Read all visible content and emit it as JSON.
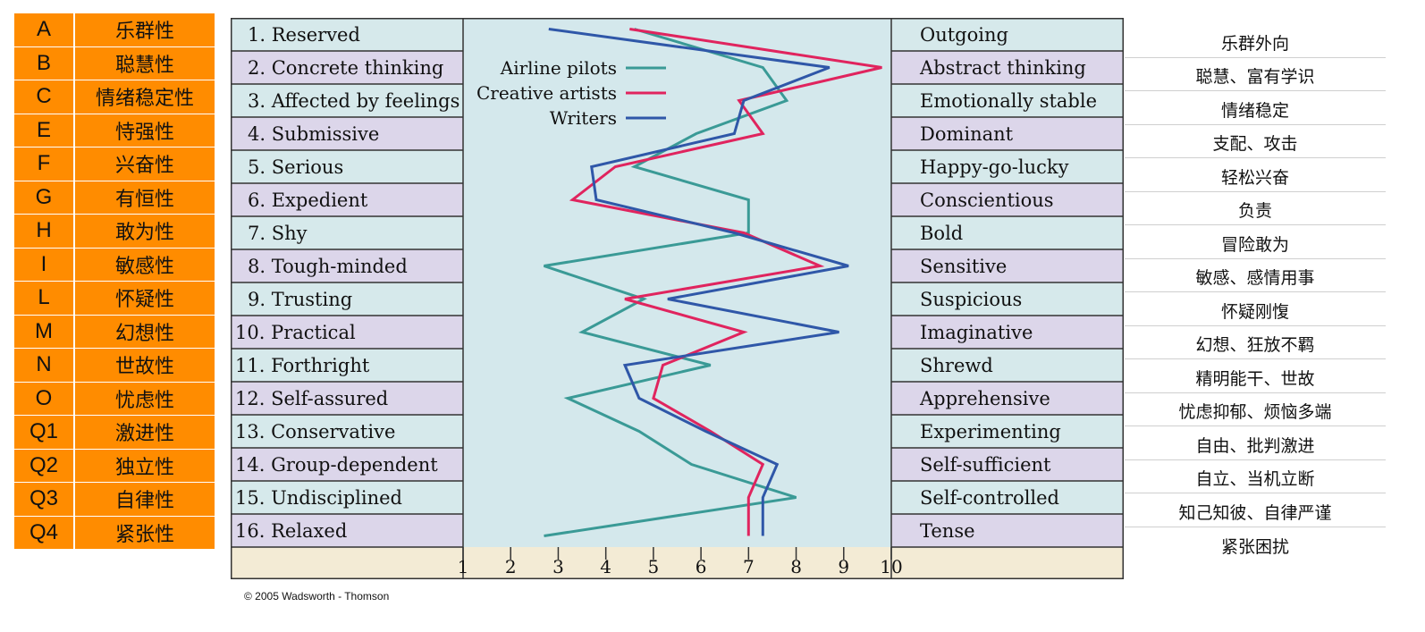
{
  "factor_table": [
    {
      "code": "A",
      "name": "乐群性"
    },
    {
      "code": "B",
      "name": "聪慧性"
    },
    {
      "code": "C",
      "name": "情绪稳定性"
    },
    {
      "code": "E",
      "name": "恃强性"
    },
    {
      "code": "F",
      "name": "兴奋性"
    },
    {
      "code": "G",
      "name": "有恒性"
    },
    {
      "code": "H",
      "name": "敢为性"
    },
    {
      "code": "I",
      "name": "敏感性"
    },
    {
      "code": "L",
      "name": "怀疑性"
    },
    {
      "code": "M",
      "name": "幻想性"
    },
    {
      "code": "N",
      "name": "世故性"
    },
    {
      "code": "O",
      "name": "忧虑性"
    },
    {
      "code": "Q1",
      "name": "激进性"
    },
    {
      "code": "Q2",
      "name": "独立性"
    },
    {
      "code": "Q3",
      "name": "自律性"
    },
    {
      "code": "Q4",
      "name": "紧张性"
    }
  ],
  "chinese_descriptions": [
    "乐群外向",
    "聪慧、富有学识",
    "情绪稳定",
    "支配、攻击",
    "轻松兴奋",
    "负责",
    "冒险敢为",
    "敏感、感情用事",
    "怀疑刚愎",
    "幻想、狂放不羁",
    "精明能干、世故",
    "忧虑抑郁、烦恼多端",
    "自由、批判激进",
    "自立、当机立断",
    "知己知彼、自律严谨",
    "紧张困扰"
  ],
  "credit": "© 2005 Wadsworth - Thomson",
  "colors": {
    "row_a": "#d6e9eb",
    "row_b": "#dcd6ea",
    "plot_bg": "#d4e8ec",
    "axis_bg": "#f3ebd5",
    "factor_bg": "#ff8c00"
  },
  "chart_data": {
    "type": "line",
    "orientation": "horizontal-profile",
    "left_labels": [
      "1. Reserved",
      "2. Concrete thinking",
      "3. Affected by feelings",
      "4. Submissive",
      "5. Serious",
      "6. Expedient",
      "7. Shy",
      "8. Tough-minded",
      "9. Trusting",
      "10. Practical",
      "11. Forthright",
      "12. Self-assured",
      "13. Conservative",
      "14. Group-dependent",
      "15. Undisciplined",
      "16. Relaxed"
    ],
    "right_labels": [
      "Outgoing",
      "Abstract thinking",
      "Emotionally stable",
      "Dominant",
      "Happy-go-lucky",
      "Conscientious",
      "Bold",
      "Sensitive",
      "Suspicious",
      "Imaginative",
      "Shrewd",
      "Apprehensive",
      "Experimenting",
      "Self-sufficient",
      "Self-controlled",
      "Tense"
    ],
    "xlim": [
      1,
      10
    ],
    "xticks": [
      "1",
      "2",
      "3",
      "4",
      "5",
      "6",
      "7",
      "8",
      "9",
      "10"
    ],
    "series": [
      {
        "name": "Airline pilots",
        "color": "#3a9a96",
        "values": [
          4.6,
          7.3,
          7.8,
          5.9,
          4.6,
          7.0,
          7.0,
          2.7,
          4.8,
          3.5,
          6.2,
          3.2,
          4.7,
          5.8,
          8.0,
          2.7
        ]
      },
      {
        "name": "Creative artists",
        "color": "#e0245e",
        "values": [
          4.5,
          9.8,
          6.8,
          7.3,
          4.2,
          3.3,
          6.9,
          8.5,
          4.4,
          6.9,
          5.2,
          5.0,
          6.2,
          7.3,
          7.0,
          7.0
        ]
      },
      {
        "name": "Writers",
        "color": "#2f57a8",
        "values": [
          2.8,
          8.7,
          6.9,
          6.7,
          3.7,
          3.8,
          6.7,
          9.1,
          5.3,
          8.9,
          4.4,
          4.7,
          6.1,
          7.6,
          7.3,
          7.3
        ]
      }
    ]
  }
}
